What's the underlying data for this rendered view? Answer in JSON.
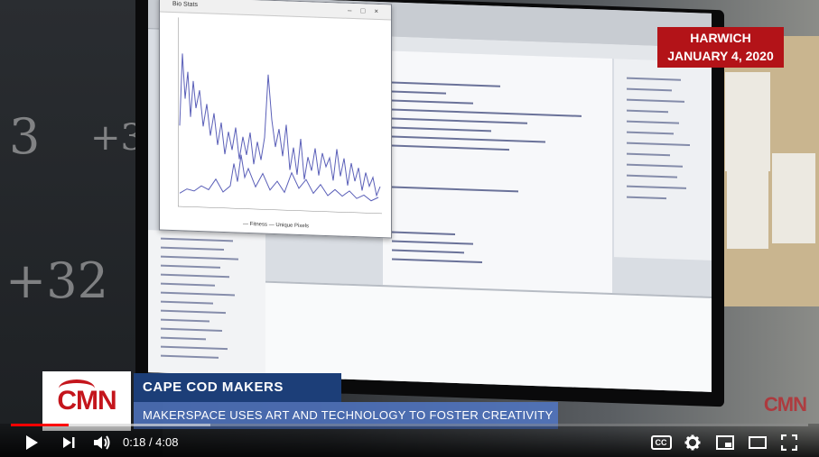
{
  "overlay": {
    "location": "HARWICH",
    "date": "JANUARY 4, 2020",
    "logo_text": "CMN",
    "lower_third_title": "CAPE COD MAKERS",
    "lower_third_subtitle": "MAKERSPACE USES ART AND TECHNOLOGY TO FOSTER CREATIVITY",
    "watermark_text": "CMN"
  },
  "plot_window": {
    "title": "Bio Stats",
    "legend_fitness": "— Fitness",
    "legend_unique": "— Unique Pixels"
  },
  "player": {
    "current_time": "0:18",
    "duration": "4:08",
    "progress_fraction": 0.0726,
    "buffered_fraction": 0.25,
    "cc_label": "CC"
  },
  "icons": {
    "play": "play-icon",
    "next": "next-icon",
    "volume": "volume-icon",
    "captions": "captions-icon",
    "settings": "settings-icon",
    "miniplayer": "miniplayer-icon",
    "theater": "theater-icon",
    "fullscreen": "fullscreen-icon"
  },
  "colors": {
    "accent_red": "#ff0000",
    "badge_red": "#b31318",
    "lower_third_blue": "#1c3e78"
  }
}
